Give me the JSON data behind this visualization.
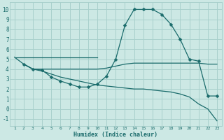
{
  "xlabel": "Humidex (Indice chaleur)",
  "xlim": [
    0.5,
    23.5
  ],
  "ylim": [
    -1.7,
    10.7
  ],
  "yticks": [
    -1,
    0,
    1,
    2,
    3,
    4,
    5,
    6,
    7,
    8,
    9,
    10
  ],
  "xticks": [
    1,
    2,
    3,
    4,
    5,
    6,
    7,
    8,
    9,
    10,
    11,
    12,
    13,
    14,
    15,
    16,
    17,
    18,
    19,
    20,
    21,
    22,
    23
  ],
  "bg_color": "#cce8e4",
  "grid_color": "#a8d0cc",
  "line_color": "#1a6b6b",
  "line1_x": [
    1,
    10
  ],
  "line1_y": [
    5.2,
    5.2
  ],
  "line2_x": [
    2,
    3,
    4,
    5,
    6,
    7,
    8,
    9,
    10,
    11,
    12,
    13,
    14,
    15,
    16,
    17,
    18,
    19,
    20,
    21,
    22,
    23
  ],
  "line2_y": [
    4.5,
    4.0,
    4.0,
    4.0,
    4.0,
    4.0,
    4.0,
    4.0,
    4.0,
    4.1,
    4.3,
    4.5,
    4.6,
    4.6,
    4.6,
    4.6,
    4.6,
    4.6,
    4.6,
    4.6,
    4.5,
    4.5
  ],
  "line3_x": [
    2,
    3,
    4,
    5,
    6,
    7,
    8,
    9,
    10,
    11,
    12,
    13,
    14,
    15,
    16,
    17,
    18,
    19,
    20,
    21,
    22,
    23
  ],
  "line3_y": [
    4.5,
    4.0,
    3.9,
    3.2,
    2.8,
    2.5,
    2.2,
    2.2,
    2.5,
    3.3,
    5.0,
    8.4,
    10.0,
    10.0,
    10.0,
    9.5,
    8.5,
    7.0,
    5.0,
    4.8,
    1.3,
    1.3
  ],
  "line4_x": [
    1,
    2,
    3,
    4,
    5,
    6,
    7,
    8,
    9,
    10,
    11,
    12,
    13,
    14,
    15,
    16,
    17,
    18,
    19,
    20,
    21,
    22,
    23
  ],
  "line4_y": [
    5.2,
    4.5,
    4.0,
    3.8,
    3.5,
    3.2,
    3.0,
    2.8,
    2.6,
    2.4,
    2.3,
    2.2,
    2.1,
    2.0,
    2.0,
    1.9,
    1.8,
    1.7,
    1.5,
    1.2,
    0.5,
    0.0,
    -1.2
  ]
}
